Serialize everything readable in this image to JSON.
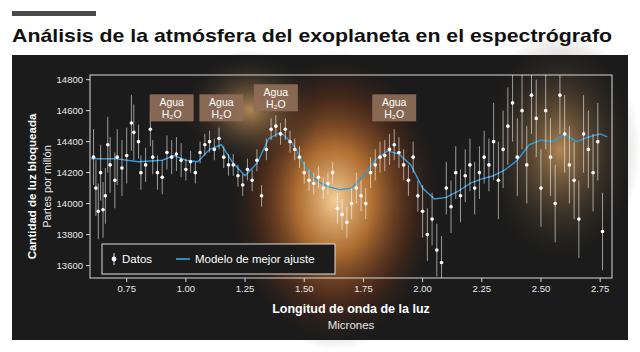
{
  "chart_data": {
    "type": "scatter",
    "title": "Análisis de la atmósfera del exoplaneta en el espectrógrafo",
    "xlabel": "Longitud de onda de la luz",
    "xlabel_sub": "Micrones",
    "ylabel": "Cantidad de luz bloqueada",
    "ylabel_sub": "Partes por millón",
    "xlim": [
      0.595,
      2.8
    ],
    "ylim": [
      13520,
      14830
    ],
    "xticks": [
      0.75,
      {
        "value": 1,
        "label": "1.00"
      },
      1.25,
      {
        "value": 1.5,
        "label": "1.50"
      },
      1.75,
      {
        "value": 2,
        "label": "2.00"
      },
      2.25,
      {
        "value": 2.5,
        "label": "2.50"
      },
      2.75
    ],
    "yticks": [
      13600,
      13800,
      14000,
      14200,
      14400,
      14600,
      14800
    ],
    "legend": "bottom-left",
    "grid": false,
    "annotations": [
      {
        "text": "Agua",
        "formula": "H₂O",
        "x": 0.94,
        "y": 14618
      },
      {
        "text": "Agua",
        "formula": "H₂O",
        "x": 1.15,
        "y": 14618
      },
      {
        "text": "Agua",
        "formula": "H₂O",
        "x": 1.38,
        "y": 14683
      },
      {
        "text": "Agua",
        "formula": "H₂O",
        "x": 1.88,
        "y": 14618
      }
    ],
    "series": [
      {
        "name": "Datos",
        "type": "scatter",
        "marker": "circle",
        "color": "#ffffff",
        "x": [
          0.61,
          0.62,
          0.63,
          0.64,
          0.65,
          0.66,
          0.67,
          0.68,
          0.7,
          0.71,
          0.73,
          0.75,
          0.77,
          0.78,
          0.8,
          0.81,
          0.83,
          0.85,
          0.86,
          0.88,
          0.9,
          0.92,
          0.94,
          0.96,
          0.98,
          1.0,
          1.02,
          1.04,
          1.06,
          1.08,
          1.1,
          1.12,
          1.14,
          1.16,
          1.18,
          1.2,
          1.22,
          1.24,
          1.26,
          1.28,
          1.3,
          1.32,
          1.34,
          1.36,
          1.38,
          1.4,
          1.42,
          1.44,
          1.46,
          1.48,
          1.5,
          1.52,
          1.54,
          1.56,
          1.58,
          1.6,
          1.62,
          1.64,
          1.66,
          1.68,
          1.7,
          1.72,
          1.74,
          1.76,
          1.78,
          1.8,
          1.82,
          1.84,
          1.86,
          1.88,
          1.9,
          1.92,
          1.94,
          1.96,
          1.98,
          2.0,
          2.02,
          2.04,
          2.06,
          2.08,
          2.1,
          2.12,
          2.14,
          2.16,
          2.18,
          2.2,
          2.22,
          2.24,
          2.26,
          2.28,
          2.3,
          2.32,
          2.34,
          2.36,
          2.38,
          2.4,
          2.42,
          2.44,
          2.46,
          2.48,
          2.5,
          2.52,
          2.54,
          2.56,
          2.58,
          2.6,
          2.62,
          2.64,
          2.66,
          2.68,
          2.7,
          2.72,
          2.74,
          2.76
        ],
        "values": [
          14300,
          14100,
          13950,
          14200,
          13960,
          14050,
          14380,
          14250,
          14150,
          14300,
          14230,
          14310,
          14520,
          14460,
          14400,
          14200,
          14250,
          14480,
          14300,
          14200,
          14170,
          14330,
          14300,
          14320,
          14280,
          14220,
          14270,
          14200,
          14330,
          14380,
          14400,
          14350,
          14420,
          14300,
          14250,
          14250,
          14180,
          14120,
          14220,
          14150,
          14280,
          14050,
          14350,
          14480,
          14500,
          14450,
          14480,
          14400,
          14350,
          14300,
          14200,
          14150,
          14130,
          14170,
          14100,
          14130,
          14200,
          13970,
          13930,
          13880,
          14000,
          14100,
          14050,
          14000,
          14200,
          14250,
          14300,
          14310,
          14350,
          14380,
          14330,
          14250,
          14150,
          14300,
          14050,
          13950,
          13800,
          13900,
          13700,
          13620,
          14100,
          13980,
          14200,
          14050,
          14180,
          14250,
          14100,
          14200,
          14300,
          14250,
          14400,
          14150,
          14350,
          14500,
          14650,
          14300,
          14600,
          14250,
          14700,
          14550,
          14100,
          14600,
          14300,
          14000,
          14700,
          14450,
          14250,
          14150,
          13900,
          14450,
          14350,
          14200,
          14400,
          13820
        ],
        "errors": [
          180,
          180,
          180,
          180,
          180,
          180,
          180,
          180,
          180,
          180,
          180,
          180,
          180,
          180,
          110,
          110,
          110,
          110,
          110,
          110,
          110,
          110,
          110,
          110,
          110,
          70,
          70,
          70,
          70,
          70,
          70,
          70,
          70,
          70,
          70,
          70,
          70,
          70,
          70,
          70,
          70,
          70,
          70,
          70,
          70,
          70,
          70,
          70,
          70,
          70,
          70,
          70,
          70,
          70,
          70,
          70,
          70,
          100,
          100,
          100,
          100,
          100,
          100,
          100,
          100,
          100,
          100,
          100,
          100,
          100,
          100,
          100,
          100,
          100,
          100,
          170,
          170,
          170,
          170,
          170,
          170,
          170,
          170,
          170,
          170,
          170,
          170,
          170,
          170,
          170,
          250,
          250,
          250,
          250,
          250,
          250,
          250,
          250,
          250,
          250,
          250,
          250,
          250,
          250,
          250,
          250,
          250,
          250,
          250,
          250,
          250,
          250,
          250,
          250
        ]
      },
      {
        "name": "Modelo de mejor ajuste",
        "type": "line",
        "line_style": "solid",
        "color": "#2f9bd6",
        "x": [
          0.6,
          0.7,
          0.8,
          0.9,
          0.95,
          1.0,
          1.05,
          1.1,
          1.15,
          1.2,
          1.25,
          1.3,
          1.35,
          1.4,
          1.45,
          1.5,
          1.55,
          1.6,
          1.65,
          1.7,
          1.75,
          1.8,
          1.85,
          1.9,
          1.95,
          2.0,
          2.05,
          2.1,
          2.15,
          2.2,
          2.25,
          2.3,
          2.35,
          2.4,
          2.45,
          2.5,
          2.55,
          2.6,
          2.65,
          2.7,
          2.75,
          2.78
        ],
        "values": [
          14290,
          14290,
          14270,
          14280,
          14310,
          14280,
          14270,
          14350,
          14380,
          14260,
          14180,
          14260,
          14420,
          14460,
          14390,
          14250,
          14150,
          14110,
          14090,
          14100,
          14180,
          14280,
          14340,
          14320,
          14250,
          14100,
          14030,
          14040,
          14080,
          14130,
          14160,
          14180,
          14220,
          14280,
          14380,
          14410,
          14400,
          14450,
          14400,
          14430,
          14450,
          14430
        ]
      }
    ]
  }
}
